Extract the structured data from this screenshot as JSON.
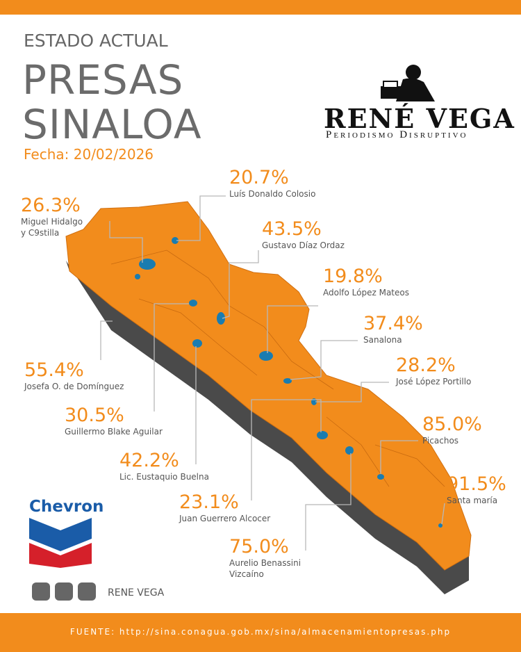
{
  "header": {
    "subtitle": "ESTADO ACTUAL",
    "title_lines": [
      "PRESAS",
      "SINALOA"
    ],
    "date": "Fecha: 20/02/2026"
  },
  "brand": {
    "name": "RENÉ VEGA",
    "tagline": "Periodismo Disruptivo"
  },
  "dams": [
    {
      "percent": "26.3%",
      "name": "Miguel Hidalgo y C9stilla"
    },
    {
      "percent": "20.7%",
      "name": "Luís Donaldo Colosio"
    },
    {
      "percent": "43.5%",
      "name": "Gustavo Díaz Ordaz"
    },
    {
      "percent": "19.8%",
      "name": "Adolfo López Mateos"
    },
    {
      "percent": "37.4%",
      "name": "Sanalona"
    },
    {
      "percent": "28.2%",
      "name": "José López Portillo"
    },
    {
      "percent": "85.0%",
      "name": "Picachos"
    },
    {
      "percent": "91.5%",
      "name": "Santa maría"
    },
    {
      "percent": "55.4%",
      "name": "Josefa O. de Domínguez"
    },
    {
      "percent": "30.5%",
      "name": "Guillermo Blake Aguilar"
    },
    {
      "percent": "42.2%",
      "name": "Lic. Eustaquio Buelna"
    },
    {
      "percent": "23.1%",
      "name": "Juan Guerrero Alcocer"
    },
    {
      "percent": "75.0%",
      "name": "Aurelio Benassini Vizcaíno"
    }
  ],
  "sponsor": "Chevron",
  "social": "RENE VEGA",
  "footer": "FUENTE: http://sina.conagua.gob.mx/sina/almacenamientopresas.php"
}
